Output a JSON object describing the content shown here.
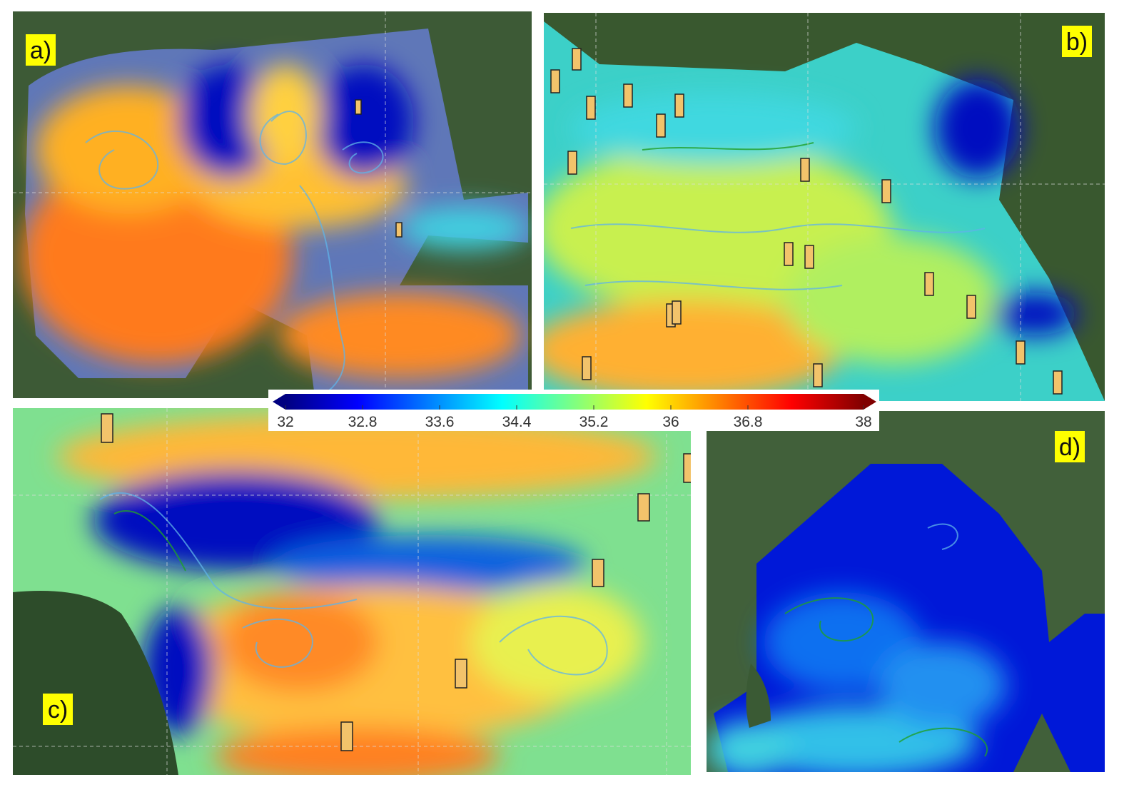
{
  "panels": [
    {
      "label": "a)"
    },
    {
      "label": "b)"
    },
    {
      "label": "c)"
    },
    {
      "label": "d)"
    }
  ],
  "colorbar": {
    "lim": [
      32,
      38
    ],
    "ticks": [
      32,
      32.8,
      33.6,
      34.4,
      35.2,
      36,
      36.8,
      38
    ],
    "colors": [
      "#000080",
      "#0000ff",
      "#0080ff",
      "#00ffff",
      "#80ff80",
      "#ffff00",
      "#ff8000",
      "#ff0000",
      "#800000"
    ]
  }
}
